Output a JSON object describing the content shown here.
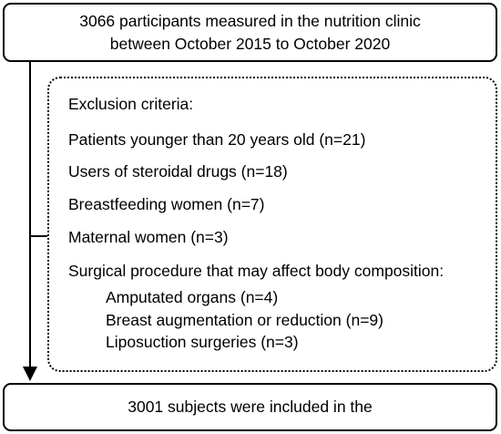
{
  "top_box": {
    "line1": "3066 participants measured in the nutrition clinic",
    "line2": "between October 2015 to October 2020"
  },
  "exclusion": {
    "heading": "Exclusion criteria:",
    "items": [
      "Patients younger than 20 years old (n=21)",
      "Users of steroidal drugs (n=18)",
      "Breastfeeding women (n=7)",
      "Maternal women (n=3)",
      "Surgical procedure that may affect body composition:"
    ],
    "sub_items": [
      "Amputated organs (n=4)",
      "Breast augmentation or reduction (n=9)",
      "Liposuction surgeries (n=3)"
    ]
  },
  "bottom_box": {
    "text": "3001 subjects were included in the"
  }
}
